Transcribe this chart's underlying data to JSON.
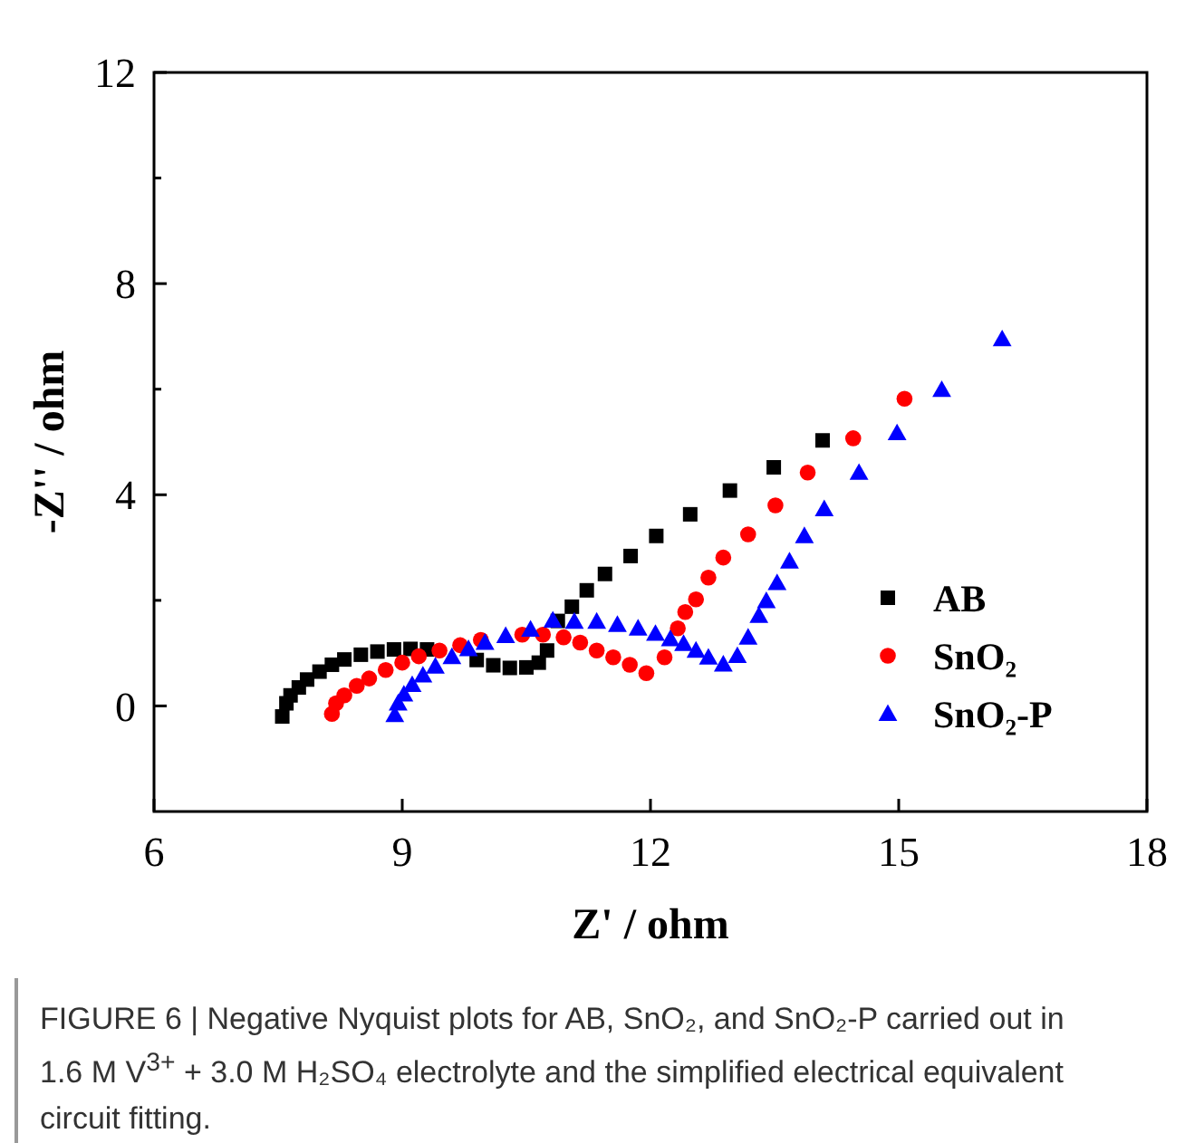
{
  "chart_data": {
    "type": "scatter",
    "xlabel": "Z' / ohm",
    "ylabel": "-Z'' / ohm",
    "xlim": [
      6,
      18
    ],
    "xticks": [
      6,
      9,
      12,
      15,
      18
    ],
    "ylim": [
      -2,
      12
    ],
    "yticks": [
      0,
      {
        "value": 2,
        "label": null
      },
      4,
      {
        "value": 6,
        "label": null
      },
      8,
      {
        "value": 10,
        "label": null
      },
      12
    ],
    "legend": "right",
    "grid": false,
    "series": [
      {
        "name": "AB",
        "color": "#000000",
        "marker": "square",
        "x": [
          7.55,
          7.6,
          7.65,
          7.75,
          7.85,
          8.0,
          8.15,
          8.3,
          8.5,
          8.7,
          8.9,
          9.1,
          9.3,
          9.9,
          10.1,
          10.3,
          10.5,
          10.65,
          10.75,
          10.88,
          11.05,
          11.23,
          11.45,
          11.76,
          12.07,
          12.48,
          12.96,
          13.49,
          14.08
        ],
        "values": [
          -0.2,
          0.05,
          0.2,
          0.35,
          0.5,
          0.65,
          0.78,
          0.88,
          0.97,
          1.03,
          1.07,
          1.08,
          1.07,
          0.87,
          0.77,
          0.72,
          0.73,
          0.82,
          1.05,
          1.61,
          1.88,
          2.19,
          2.5,
          2.84,
          3.22,
          3.63,
          4.08,
          4.52,
          5.03
        ]
      },
      {
        "name": "SnO₂",
        "color": "#ff0000",
        "marker": "circle",
        "x": [
          8.15,
          8.2,
          8.3,
          8.45,
          8.6,
          8.8,
          9.0,
          9.2,
          9.45,
          9.7,
          9.95,
          10.45,
          10.7,
          10.95,
          11.15,
          11.35,
          11.55,
          11.75,
          11.95,
          12.17,
          12.33,
          12.42,
          12.55,
          12.7,
          12.88,
          13.18,
          13.51,
          13.9,
          14.45,
          15.07
        ],
        "values": [
          -0.15,
          0.05,
          0.2,
          0.38,
          0.52,
          0.68,
          0.82,
          0.94,
          1.05,
          1.15,
          1.25,
          1.35,
          1.35,
          1.3,
          1.2,
          1.05,
          0.92,
          0.78,
          0.62,
          0.92,
          1.47,
          1.78,
          2.02,
          2.43,
          2.81,
          3.25,
          3.8,
          4.42,
          5.07,
          5.82
        ]
      },
      {
        "name": "SnO₂-P",
        "color": "#0000ff",
        "marker": "triangle",
        "x": [
          8.91,
          8.95,
          9.02,
          9.12,
          9.25,
          9.4,
          9.6,
          9.8,
          10.0,
          10.25,
          10.55,
          10.82,
          11.08,
          11.35,
          11.6,
          11.85,
          12.06,
          12.24,
          12.4,
          12.55,
          12.7,
          12.88,
          13.05,
          13.18,
          13.31,
          13.4,
          13.53,
          13.68,
          13.86,
          14.1,
          14.52,
          14.98,
          15.52,
          16.25
        ],
        "values": [
          -0.17,
          0.05,
          0.22,
          0.4,
          0.58,
          0.75,
          0.93,
          1.08,
          1.2,
          1.33,
          1.45,
          1.62,
          1.6,
          1.6,
          1.54,
          1.47,
          1.37,
          1.27,
          1.18,
          1.05,
          0.92,
          0.79,
          0.95,
          1.3,
          1.71,
          1.99,
          2.33,
          2.74,
          3.22,
          3.73,
          4.42,
          5.17,
          5.99,
          6.95
        ]
      }
    ],
    "annotations": [
      "FIGURE 6 | Negative Nyquist plots for AB, SnO₂, and SnO₂-P carried out in 1.6 M V$^{3+}$ + 3.0 M H₂SO₄ electrolyte and the simplified electrical equivalent circuit fitting."
    ]
  }
}
